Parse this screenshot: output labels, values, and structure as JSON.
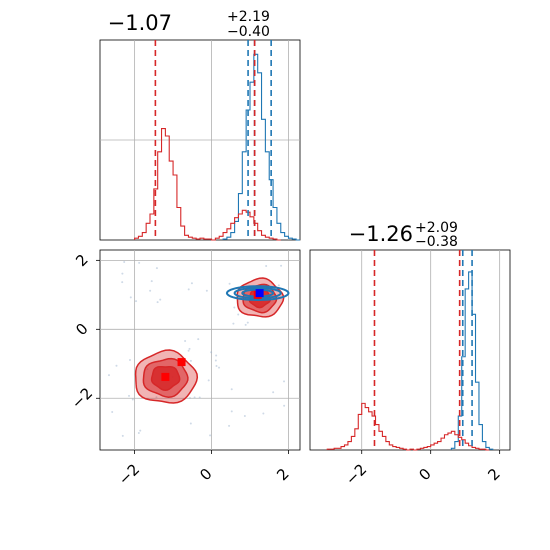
{
  "chart_data": {
    "type": "corner",
    "colors": {
      "red": "#d62728",
      "blue": "#1f77b4",
      "grid": "#b0b0b0"
    },
    "panels": [
      {
        "id": "marginal-param-1",
        "type": "histogram",
        "title": {
          "median": "−1.07",
          "plus": "+2.19",
          "minus": "−0.40"
        },
        "xlim": [
          -2.9,
          2.3
        ],
        "ygrid_pos": [
          0.5
        ],
        "red_hist": {
          "edges": [
            -2.0,
            -1.9,
            -1.8,
            -1.7,
            -1.6,
            -1.5,
            -1.4,
            -1.3,
            -1.2,
            -1.1,
            -1.0,
            -0.9,
            -0.8,
            -0.7,
            -0.6,
            -0.5,
            -0.4,
            -0.3,
            -0.2,
            -0.1,
            0.0,
            0.1,
            0.2,
            0.3,
            0.4,
            0.5,
            0.6,
            0.7,
            0.8,
            0.9,
            1.0,
            1.1,
            1.2,
            1.3,
            1.4,
            1.5,
            1.6,
            1.7,
            1.8
          ],
          "counts": [
            2,
            4,
            8,
            18,
            28,
            55,
            95,
            120,
            112,
            85,
            70,
            35,
            15,
            5,
            3,
            2,
            1,
            2,
            1,
            1,
            0,
            2,
            4,
            8,
            12,
            18,
            24,
            28,
            32,
            30,
            25,
            18,
            10,
            5,
            3,
            2,
            1,
            0
          ]
        },
        "blue_hist": {
          "edges": [
            0.3,
            0.4,
            0.5,
            0.6,
            0.7,
            0.8,
            0.9,
            1.0,
            1.1,
            1.2,
            1.3,
            1.4,
            1.5,
            1.6,
            1.7,
            1.8,
            1.9,
            2.0,
            2.1,
            2.2,
            2.3
          ],
          "counts": [
            1,
            3,
            8,
            20,
            50,
            95,
            140,
            170,
            200,
            180,
            130,
            95,
            65,
            35,
            18,
            8,
            4,
            2,
            1,
            0
          ]
        },
        "red_lines": [
          -1.46,
          1.12
        ],
        "blue_lines": [
          0.95,
          1.12,
          1.55
        ],
        "ymax": 210
      },
      {
        "id": "joint-param-1-param-2",
        "type": "scatter_contour",
        "xlim": [
          -2.9,
          2.3
        ],
        "ylim": [
          -3.5,
          2.3
        ],
        "xticks": [
          -2,
          0,
          2
        ],
        "yticks": [
          -2,
          0,
          2
        ],
        "xtick_labels": [
          "−2",
          "0",
          "2"
        ],
        "ytick_labels": [
          "−2",
          "0",
          "2"
        ],
        "red_cluster_1": {
          "cx": -1.2,
          "cy": -1.4,
          "rx": 0.8,
          "ry": 0.75
        },
        "red_cluster_2": {
          "cx": 1.25,
          "cy": 0.9,
          "rx": 0.6,
          "ry": 0.55
        },
        "blue_cluster": {
          "cx": 1.2,
          "cy": 1.05,
          "rx": 0.8,
          "ry": 0.2
        },
        "red_markers": [
          [
            -1.2,
            -1.38
          ],
          [
            -0.78,
            -0.95
          ]
        ],
        "blue_marker": [
          1.25,
          1.05
        ],
        "red_dot_in_cluster2": [
          1.2,
          1.0
        ]
      },
      {
        "id": "marginal-param-2",
        "type": "histogram",
        "title": {
          "median": "−1.26",
          "plus": "+2.09",
          "minus": "−0.38"
        },
        "xlim": [
          -3.5,
          2.3
        ],
        "xticks": [
          -2,
          0,
          2
        ],
        "xtick_labels": [
          "−2",
          "0",
          "2"
        ],
        "red_hist": {
          "edges": [
            -3.0,
            -2.9,
            -2.8,
            -2.7,
            -2.6,
            -2.5,
            -2.4,
            -2.3,
            -2.2,
            -2.1,
            -2.0,
            -1.9,
            -1.8,
            -1.7,
            -1.6,
            -1.5,
            -1.4,
            -1.3,
            -1.2,
            -1.1,
            -1.0,
            -0.9,
            -0.8,
            -0.7,
            -0.6,
            -0.5,
            -0.4,
            -0.3,
            -0.2,
            -0.1,
            0.0,
            0.1,
            0.2,
            0.3,
            0.4,
            0.5,
            0.6,
            0.7,
            0.8,
            0.9,
            1.0,
            1.1,
            1.2,
            1.3,
            1.4,
            1.5,
            1.6,
            1.7
          ],
          "counts": [
            1,
            1,
            2,
            2,
            4,
            6,
            10,
            16,
            25,
            42,
            55,
            50,
            45,
            40,
            30,
            22,
            16,
            10,
            6,
            4,
            3,
            2,
            1,
            0,
            1,
            0,
            1,
            2,
            3,
            4,
            6,
            8,
            10,
            14,
            18,
            20,
            22,
            18,
            15,
            12,
            8,
            5,
            3,
            2,
            1,
            1,
            0
          ]
        },
        "blue_hist": {
          "edges": [
            0.6,
            0.7,
            0.8,
            0.9,
            1.0,
            1.1,
            1.2,
            1.3,
            1.4,
            1.5,
            1.6,
            1.7,
            1.8
          ],
          "counts": [
            2,
            10,
            40,
            110,
            190,
            210,
            160,
            80,
            30,
            10,
            3,
            1
          ]
        },
        "red_lines": [
          -1.63,
          0.84
        ],
        "blue_lines": [
          0.93,
          1.2
        ],
        "ymax": 230
      }
    ]
  }
}
